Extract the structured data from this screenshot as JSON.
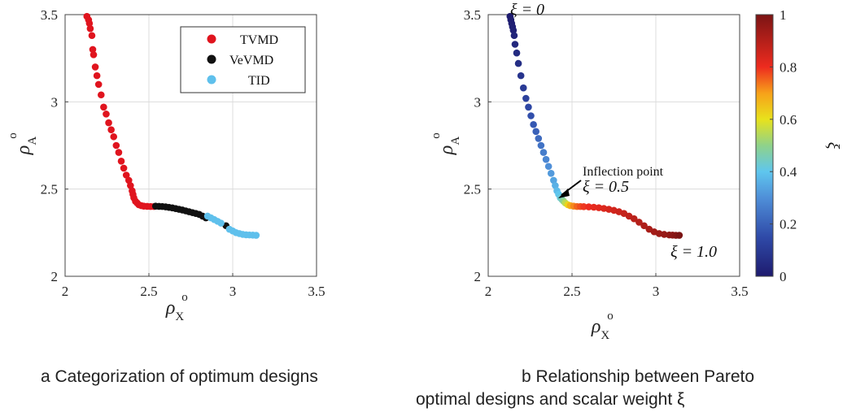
{
  "chart_data": [
    {
      "type": "scatter",
      "panel": "a",
      "xlabel": "ρ",
      "xlabel_sup": "o",
      "xlabel_sub": "X",
      "ylabel": "ρ",
      "ylabel_sup": "o",
      "ylabel_sub": "A",
      "xlim": [
        2,
        3.5
      ],
      "ylim": [
        2,
        3.5
      ],
      "xticks": [
        "2",
        "2.5",
        "3",
        "3.5"
      ],
      "yticks": [
        "2",
        "2.5",
        "3",
        "3.5"
      ],
      "grid": true,
      "legend_position": "top-right",
      "series": [
        {
          "name": "TVMD",
          "color": "#e0141e",
          "x": [
            2.13,
            2.14,
            2.145,
            2.15,
            2.16,
            2.165,
            2.17,
            2.18,
            2.19,
            2.2,
            2.215,
            2.23,
            2.245,
            2.26,
            2.275,
            2.29,
            2.305,
            2.32,
            2.335,
            2.35,
            2.365,
            2.38,
            2.39,
            2.4,
            2.405,
            2.41,
            2.42,
            2.43,
            2.44,
            2.455,
            2.47,
            2.49,
            2.51,
            2.53
          ],
          "y": [
            3.49,
            3.47,
            3.45,
            3.42,
            3.38,
            3.3,
            3.27,
            3.2,
            3.15,
            3.1,
            3.04,
            2.97,
            2.93,
            2.88,
            2.84,
            2.8,
            2.75,
            2.71,
            2.66,
            2.62,
            2.58,
            2.55,
            2.52,
            2.49,
            2.47,
            2.45,
            2.43,
            2.42,
            2.41,
            2.405,
            2.402,
            2.401,
            2.4,
            2.4
          ]
        },
        {
          "name": "VeVMD",
          "color": "#111111",
          "x": [
            2.54,
            2.56,
            2.58,
            2.6,
            2.62,
            2.64,
            2.66,
            2.68,
            2.7,
            2.72,
            2.74,
            2.76,
            2.78,
            2.8,
            2.82,
            2.84,
            2.96
          ],
          "y": [
            2.402,
            2.401,
            2.4,
            2.398,
            2.395,
            2.392,
            2.388,
            2.384,
            2.38,
            2.375,
            2.37,
            2.365,
            2.36,
            2.355,
            2.345,
            2.335,
            2.29
          ]
        },
        {
          "name": "TID",
          "color": "#5fc0ec",
          "x": [
            2.85,
            2.87,
            2.89,
            2.91,
            2.93,
            2.98,
            3.0,
            3.02,
            3.04,
            3.06,
            3.08,
            3.1,
            3.12,
            3.14
          ],
          "y": [
            2.345,
            2.335,
            2.325,
            2.315,
            2.305,
            2.27,
            2.26,
            2.25,
            2.245,
            2.24,
            2.238,
            2.237,
            2.236,
            2.235
          ]
        }
      ]
    },
    {
      "type": "scatter",
      "panel": "b",
      "xlabel": "ρ",
      "xlabel_sup": "o",
      "xlabel_sub": "X",
      "ylabel": "ρ",
      "ylabel_sup": "o",
      "ylabel_sub": "A",
      "xlim": [
        2,
        3.5
      ],
      "ylim": [
        2,
        3.5
      ],
      "xticks": [
        "2",
        "2.5",
        "3",
        "3.5"
      ],
      "yticks": [
        "2",
        "2.5",
        "3",
        "3.5"
      ],
      "grid": true,
      "x": [
        2.13,
        2.135,
        2.14,
        2.145,
        2.15,
        2.155,
        2.16,
        2.17,
        2.18,
        2.195,
        2.21,
        2.225,
        2.24,
        2.255,
        2.27,
        2.285,
        2.3,
        2.315,
        2.33,
        2.345,
        2.36,
        2.375,
        2.39,
        2.4,
        2.41,
        2.42,
        2.43,
        2.44,
        2.45,
        2.46,
        2.475,
        2.49,
        2.51,
        2.53,
        2.55,
        2.57,
        2.6,
        2.63,
        2.66,
        2.69,
        2.72,
        2.75,
        2.78,
        2.81,
        2.84,
        2.87,
        2.9,
        2.93,
        2.96,
        2.99,
        3.02,
        3.05,
        3.08,
        3.1,
        3.12,
        3.14
      ],
      "y": [
        3.49,
        3.47,
        3.45,
        3.43,
        3.41,
        3.38,
        3.33,
        3.28,
        3.22,
        3.15,
        3.08,
        3.02,
        2.97,
        2.92,
        2.87,
        2.83,
        2.79,
        2.75,
        2.71,
        2.67,
        2.63,
        2.59,
        2.55,
        2.52,
        2.49,
        2.47,
        2.45,
        2.44,
        2.43,
        2.42,
        2.41,
        2.405,
        2.402,
        2.4,
        2.4,
        2.399,
        2.398,
        2.396,
        2.393,
        2.389,
        2.384,
        2.378,
        2.37,
        2.36,
        2.345,
        2.33,
        2.31,
        2.29,
        2.27,
        2.255,
        2.245,
        2.24,
        2.237,
        2.236,
        2.235,
        2.235
      ],
      "c": [
        0.0,
        0.005,
        0.01,
        0.015,
        0.02,
        0.03,
        0.04,
        0.05,
        0.06,
        0.08,
        0.1,
        0.12,
        0.14,
        0.16,
        0.18,
        0.2,
        0.22,
        0.24,
        0.26,
        0.28,
        0.3,
        0.32,
        0.34,
        0.36,
        0.38,
        0.4,
        0.42,
        0.45,
        0.5,
        0.55,
        0.62,
        0.68,
        0.72,
        0.75,
        0.77,
        0.79,
        0.8,
        0.81,
        0.82,
        0.83,
        0.84,
        0.85,
        0.86,
        0.87,
        0.88,
        0.89,
        0.9,
        0.91,
        0.92,
        0.93,
        0.94,
        0.95,
        0.96,
        0.97,
        0.98,
        1.0
      ],
      "colorbar": {
        "label": "ξ",
        "range": [
          0,
          1
        ],
        "ticks": [
          "0",
          "0.2",
          "0.4",
          "0.6",
          "0.8",
          "1"
        ]
      },
      "annotations": [
        {
          "id": "xi0",
          "text": "ξ = 0"
        },
        {
          "id": "inflection",
          "text": "Inflection point"
        },
        {
          "id": "xi05",
          "text": "ξ = 0.5"
        },
        {
          "id": "xi1",
          "text": "ξ = 1.0"
        }
      ]
    }
  ],
  "captions": {
    "a": "a  Categorization of optimum designs",
    "b_line1": "b   Relationship    between   Pareto",
    "b_line2": "optimal designs and scalar weight ξ"
  }
}
